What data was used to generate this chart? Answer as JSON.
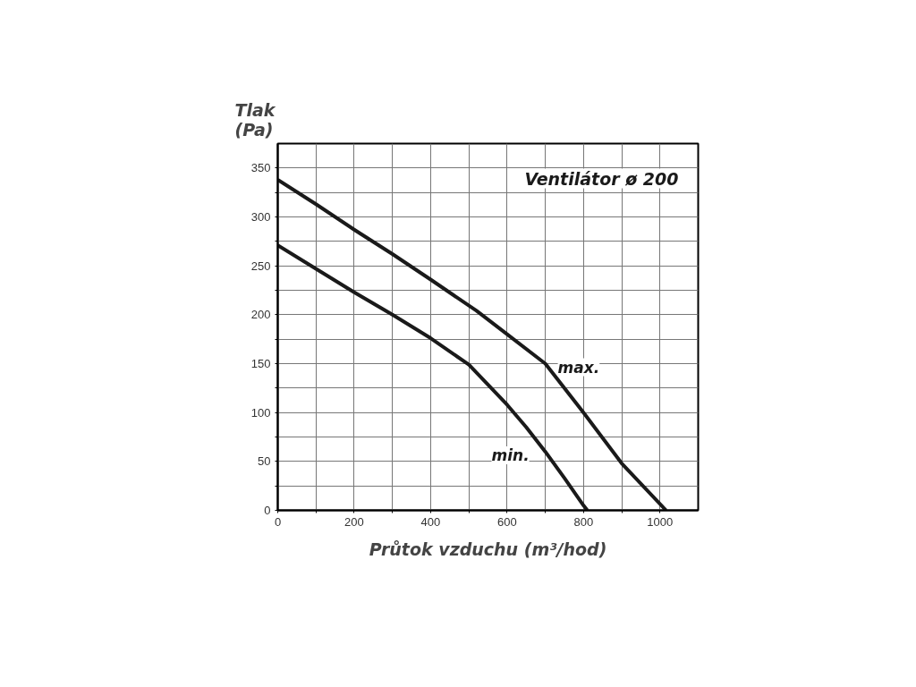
{
  "chart_data": {
    "type": "line",
    "title": "Ventilátor ø 200",
    "xlabel": "Průtok vzduchu (m³/hod)",
    "ylabel": "Tlak\n(Pa)",
    "series": [
      {
        "name": "max.",
        "color": "#1a1a1a",
        "x": [
          0,
          100,
          200,
          300,
          400,
          520,
          600,
          700,
          800,
          900,
          1016
        ],
        "values": [
          338,
          313,
          287,
          262,
          236,
          204,
          180,
          150,
          100,
          48,
          0
        ]
      },
      {
        "name": "min.",
        "color": "#1a1a1a",
        "x": [
          0,
          100,
          200,
          300,
          400,
          500,
          600,
          650,
          700,
          750,
          800,
          810
        ],
        "values": [
          271,
          247,
          223,
          200,
          176,
          149,
          108,
          85,
          60,
          33,
          5,
          0
        ]
      }
    ],
    "xlim": [
      0,
      1100
    ],
    "ylim": [
      0,
      375
    ],
    "xticks": [
      0,
      {
        "value": 100,
        "label": null
      },
      200,
      {
        "value": 300,
        "label": null
      },
      400,
      {
        "value": 500,
        "label": null
      },
      600,
      {
        "value": 700,
        "label": null
      },
      800,
      {
        "value": 900,
        "label": null
      },
      1000
    ],
    "yticks": [
      0,
      {
        "value": 25,
        "label": null
      },
      50,
      {
        "value": 75,
        "label": null
      },
      100,
      {
        "value": 125,
        "label": null
      },
      150,
      {
        "value": 175,
        "label": null
      },
      200,
      {
        "value": 225,
        "label": null
      },
      250,
      {
        "value": 275,
        "label": null
      },
      300,
      {
        "value": 325,
        "label": null
      },
      350
    ],
    "grid": true,
    "marker": "none",
    "line_style": "solid"
  }
}
